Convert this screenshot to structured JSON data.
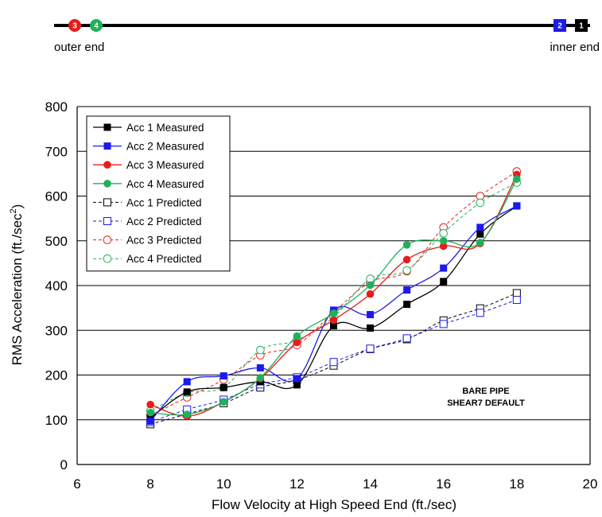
{
  "pipe_diagram": {
    "left_label": "outer end",
    "right_label": "inner end",
    "sensors": [
      {
        "number": "3",
        "color": "#e81c1c",
        "shape": "circle",
        "side": "left"
      },
      {
        "number": "4",
        "color": "#1fb15a",
        "shape": "circle",
        "side": "left"
      },
      {
        "number": "2",
        "color": "#1a1aee",
        "shape": "square",
        "side": "right"
      },
      {
        "number": "1",
        "color": "#000000",
        "shape": "square",
        "side": "right"
      }
    ]
  },
  "chart_data": {
    "type": "line",
    "title": "",
    "xlabel": "Flow Velocity at High Speed End (ft./sec)",
    "ylabel": "RMS Acceleration (ft./sec",
    "ylabel_sup": "2",
    "ylabel_end": ")",
    "xlim": [
      6,
      20
    ],
    "ylim": [
      0,
      800
    ],
    "xticks": [
      6,
      8,
      10,
      12,
      14,
      16,
      18,
      20
    ],
    "yticks": [
      0,
      100,
      200,
      300,
      400,
      500,
      600,
      700,
      800
    ],
    "grid": "horizontal",
    "legend_position": "top-left",
    "annotation": [
      "BARE PIPE",
      "SHEAR7 DEFAULT"
    ],
    "series": [
      {
        "name": "Acc 1 Measured",
        "color": "#000000",
        "marker": "square",
        "filled": true,
        "dashed": false,
        "x": [
          8,
          9,
          10,
          11,
          12,
          13,
          14,
          15,
          16,
          17,
          18
        ],
        "y": [
          104,
          162,
          172,
          185,
          178,
          310,
          305,
          358,
          409,
          515,
          578
        ]
      },
      {
        "name": "Acc 2 Measured",
        "color": "#1a1aee",
        "marker": "square",
        "filled": true,
        "dashed": false,
        "x": [
          8,
          9,
          10,
          11,
          12,
          13,
          14,
          15,
          16,
          17,
          18
        ],
        "y": [
          97,
          185,
          198,
          216,
          192,
          345,
          335,
          390,
          439,
          530,
          578
        ]
      },
      {
        "name": "Acc 3 Measured",
        "color": "#e81c1c",
        "marker": "circle",
        "filled": true,
        "dashed": false,
        "x": [
          8,
          9,
          10,
          11,
          12,
          13,
          14,
          15,
          16,
          17,
          18
        ],
        "y": [
          134,
          108,
          140,
          192,
          273,
          323,
          381,
          458,
          488,
          494,
          648
        ]
      },
      {
        "name": "Acc 4 Measured",
        "color": "#1fb15a",
        "marker": "circle",
        "filled": true,
        "dashed": false,
        "x": [
          8,
          9,
          10,
          11,
          12,
          13,
          14,
          15,
          16,
          17,
          18
        ],
        "y": [
          116,
          112,
          140,
          194,
          287,
          338,
          401,
          491,
          500,
          496,
          638
        ]
      },
      {
        "name": "Acc 1 Predicted",
        "color": "#000000",
        "marker": "square",
        "filled": false,
        "dashed": true,
        "x": [
          8,
          9,
          10,
          11,
          12,
          13,
          14,
          15,
          16,
          17,
          18
        ],
        "y": [
          90,
          113,
          137,
          172,
          189,
          221,
          258,
          280,
          322,
          349,
          383
        ]
      },
      {
        "name": "Acc 2 Predicted",
        "color": "#1a1aee",
        "marker": "square",
        "filled": false,
        "dashed": true,
        "x": [
          8,
          9,
          10,
          11,
          12,
          13,
          14,
          15,
          16,
          17,
          18
        ],
        "y": [
          95,
          123,
          145,
          179,
          195,
          229,
          259,
          282,
          314,
          339,
          368
        ]
      },
      {
        "name": "Acc 3 Predicted",
        "color": "#e81c1c",
        "marker": "circle",
        "filled": false,
        "dashed": true,
        "x": [
          8,
          9,
          10,
          11,
          12,
          13,
          14,
          15,
          16,
          17,
          18
        ],
        "y": [
          110,
          150,
          190,
          244,
          267,
          340,
          408,
          432,
          530,
          600,
          655
        ]
      },
      {
        "name": "Acc 4 Predicted",
        "color": "#1fb15a",
        "marker": "circle",
        "filled": false,
        "dashed": true,
        "x": [
          8,
          9,
          10,
          11,
          12,
          13,
          14,
          15,
          16,
          17,
          18
        ],
        "y": [
          120,
          160,
          173,
          256,
          278,
          330,
          415,
          434,
          517,
          585,
          630
        ]
      }
    ]
  }
}
